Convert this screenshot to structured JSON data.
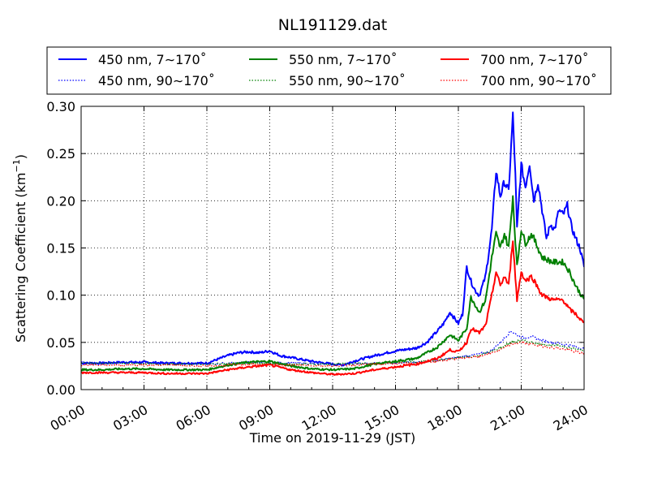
{
  "chart_data": {
    "type": "line",
    "title": "NL191129.dat",
    "xlabel": "Time on 2019-11-29 (JST)",
    "ylabel": "Scattering Coefficient (km",
    "ylabel_sup": "−1",
    "ylabel_end": ")",
    "xlim": [
      0,
      24
    ],
    "ylim": [
      0,
      0.3
    ],
    "grid": true,
    "legend_placement": "top, above plot",
    "x_ticks": [
      0,
      3,
      6,
      9,
      12,
      15,
      18,
      21,
      24
    ],
    "x_tick_labels": [
      "00:00",
      "03:00",
      "06:00",
      "09:00",
      "12:00",
      "15:00",
      "18:00",
      "21:00",
      "24:00"
    ],
    "y_ticks": [
      0,
      0.05,
      0.1,
      0.15,
      0.2,
      0.25,
      0.3
    ],
    "y_tick_labels": [
      "0.00",
      "0.05",
      "0.10",
      "0.15",
      "0.20",
      "0.25",
      "0.30"
    ],
    "series": [
      {
        "name": "450 nm, 7∼170˚",
        "color": "#0000ff",
        "style": "solid",
        "x": [
          0,
          1,
          2,
          3,
          4,
          5,
          6,
          7,
          7.5,
          8,
          8.5,
          9,
          9.5,
          10,
          11,
          12,
          12.5,
          13,
          14,
          15,
          16,
          16.5,
          17,
          17.3,
          17.6,
          18,
          18.2,
          18.4,
          18.6,
          18.8,
          19,
          19.3,
          19.6,
          19.8,
          20,
          20.2,
          20.4,
          20.6,
          20.7,
          20.8,
          21,
          21.2,
          21.4,
          21.6,
          21.8,
          22,
          22.2,
          22.4,
          22.6,
          22.8,
          23,
          23.2,
          23.4,
          23.6,
          23.8,
          24
        ],
        "y": [
          0.028,
          0.028,
          0.029,
          0.029,
          0.028,
          0.028,
          0.028,
          0.036,
          0.039,
          0.04,
          0.039,
          0.041,
          0.036,
          0.034,
          0.03,
          0.027,
          0.026,
          0.03,
          0.036,
          0.041,
          0.044,
          0.05,
          0.062,
          0.07,
          0.082,
          0.07,
          0.08,
          0.13,
          0.115,
          0.105,
          0.1,
          0.12,
          0.17,
          0.232,
          0.205,
          0.22,
          0.21,
          0.29,
          0.24,
          0.17,
          0.238,
          0.215,
          0.24,
          0.2,
          0.22,
          0.19,
          0.16,
          0.175,
          0.17,
          0.19,
          0.185,
          0.195,
          0.172,
          0.16,
          0.15,
          0.13
        ]
      },
      {
        "name": "450 nm, 90∼170˚",
        "color": "#0000ff",
        "style": "dotted",
        "x": [
          0,
          2,
          4,
          6,
          8,
          10,
          12,
          14,
          16,
          17,
          18,
          18.5,
          19,
          19.5,
          20,
          20.5,
          21,
          21.5,
          22,
          22.5,
          23,
          23.5,
          24
        ],
        "y": [
          0.029,
          0.028,
          0.028,
          0.027,
          0.029,
          0.028,
          0.027,
          0.028,
          0.029,
          0.031,
          0.034,
          0.036,
          0.038,
          0.04,
          0.05,
          0.062,
          0.055,
          0.056,
          0.052,
          0.05,
          0.048,
          0.046,
          0.043
        ]
      },
      {
        "name": "550 nm, 7∼170˚",
        "color": "#008000",
        "style": "solid",
        "x": [
          0,
          1,
          2,
          3,
          4,
          5,
          6,
          7,
          8,
          9,
          10,
          11,
          12,
          13,
          14,
          15,
          16,
          17,
          17.6,
          18,
          18.4,
          18.6,
          19,
          19.3,
          19.6,
          19.8,
          20,
          20.2,
          20.4,
          20.6,
          20.7,
          20.8,
          21,
          21.2,
          21.5,
          22,
          22.5,
          23,
          23.3,
          23.6,
          24
        ],
        "y": [
          0.021,
          0.021,
          0.022,
          0.022,
          0.021,
          0.021,
          0.021,
          0.026,
          0.029,
          0.03,
          0.025,
          0.022,
          0.021,
          0.022,
          0.027,
          0.03,
          0.033,
          0.045,
          0.058,
          0.052,
          0.065,
          0.098,
          0.082,
          0.095,
          0.14,
          0.165,
          0.15,
          0.165,
          0.15,
          0.205,
          0.165,
          0.13,
          0.17,
          0.155,
          0.165,
          0.14,
          0.135,
          0.135,
          0.125,
          0.11,
          0.095
        ]
      },
      {
        "name": "550 nm, 90∼170˚",
        "color": "#008000",
        "style": "dotted",
        "x": [
          0,
          2,
          4,
          6,
          8,
          10,
          12,
          14,
          16,
          17,
          18,
          19,
          20,
          20.5,
          21,
          22,
          23,
          24
        ],
        "y": [
          0.028,
          0.028,
          0.027,
          0.027,
          0.028,
          0.027,
          0.027,
          0.028,
          0.029,
          0.031,
          0.034,
          0.036,
          0.044,
          0.05,
          0.052,
          0.048,
          0.046,
          0.041
        ]
      },
      {
        "name": "700 nm, 7∼170˚",
        "color": "#ff0000",
        "style": "solid",
        "x": [
          0,
          1,
          2,
          3,
          4,
          5,
          6,
          7,
          8,
          9,
          10,
          11,
          12,
          13,
          14,
          15,
          16,
          17,
          17.6,
          18,
          18.4,
          18.6,
          19,
          19.3,
          19.6,
          19.8,
          20,
          20.2,
          20.4,
          20.6,
          20.7,
          20.8,
          21,
          21.2,
          21.5,
          22,
          22.5,
          23,
          23.3,
          23.6,
          24
        ],
        "y": [
          0.018,
          0.018,
          0.018,
          0.018,
          0.017,
          0.017,
          0.017,
          0.021,
          0.024,
          0.026,
          0.021,
          0.018,
          0.016,
          0.017,
          0.021,
          0.024,
          0.027,
          0.033,
          0.042,
          0.04,
          0.05,
          0.065,
          0.06,
          0.068,
          0.1,
          0.125,
          0.11,
          0.12,
          0.11,
          0.16,
          0.125,
          0.095,
          0.125,
          0.115,
          0.12,
          0.1,
          0.095,
          0.095,
          0.085,
          0.08,
          0.07
        ]
      },
      {
        "name": "700 nm, 90∼170˚",
        "color": "#ff0000",
        "style": "dotted",
        "x": [
          0,
          2,
          4,
          6,
          8,
          10,
          12,
          14,
          16,
          17,
          18,
          19,
          20,
          20.5,
          21,
          22,
          23,
          24
        ],
        "y": [
          0.026,
          0.026,
          0.026,
          0.025,
          0.027,
          0.026,
          0.025,
          0.027,
          0.028,
          0.03,
          0.033,
          0.035,
          0.042,
          0.048,
          0.05,
          0.046,
          0.043,
          0.038
        ]
      }
    ]
  }
}
